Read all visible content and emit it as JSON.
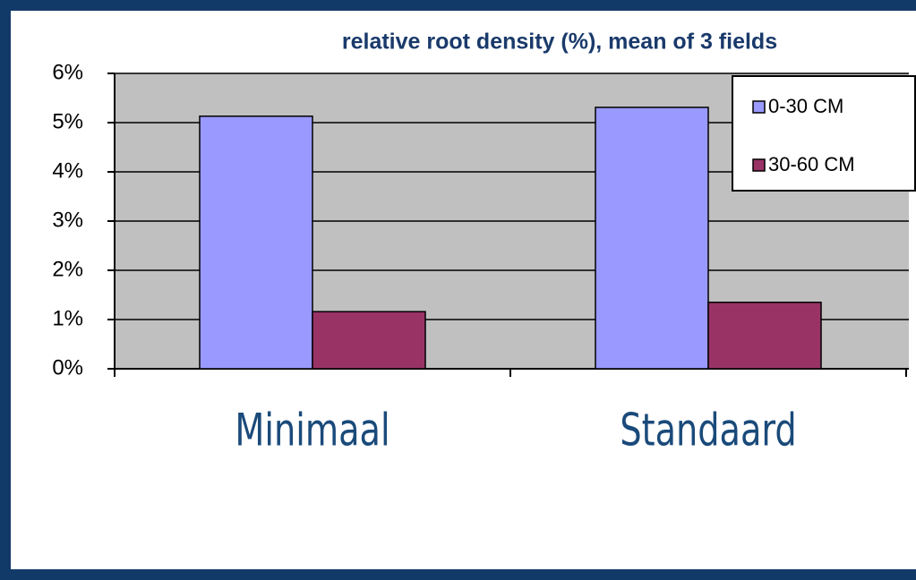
{
  "chart_data": {
    "type": "bar",
    "title": "relative root density (%), mean of 3 fields",
    "categories": [
      "Minimaal",
      "Standaard"
    ],
    "series": [
      {
        "name": "0-30 CM",
        "color": "#9999ff",
        "values": [
          5.13,
          5.31
        ]
      },
      {
        "name": "30-60 CM",
        "color": "#993366",
        "values": [
          1.16,
          1.35
        ]
      }
    ],
    "ylim": [
      0,
      6
    ],
    "yticks": [
      {
        "value": 0,
        "label": "0%"
      },
      {
        "value": 1,
        "label": "1%"
      },
      {
        "value": 2,
        "label": "2%"
      },
      {
        "value": 3,
        "label": "3%"
      },
      {
        "value": 4,
        "label": "4%"
      },
      {
        "value": 5,
        "label": "5%"
      },
      {
        "value": 6,
        "label": "6%"
      }
    ],
    "grid": true,
    "legend": "top-right"
  }
}
